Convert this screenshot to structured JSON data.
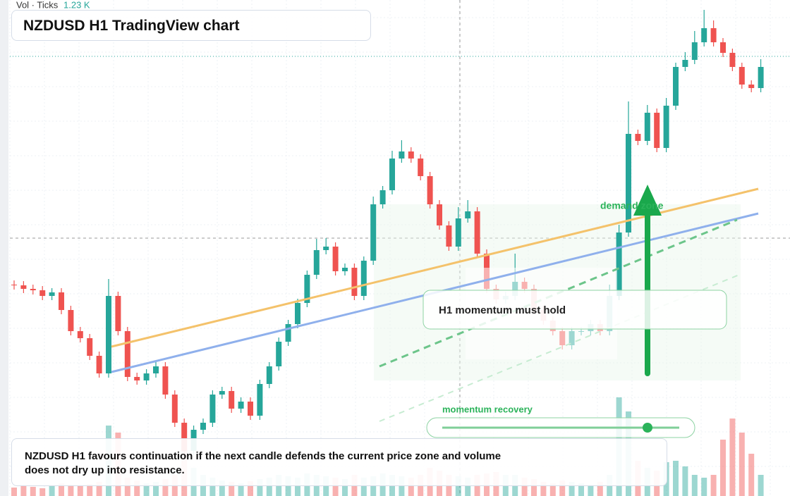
{
  "chart_data": {
    "type": "candlestick",
    "title": "NZDUSD H1 TradingView chart",
    "volume_label": "Vol · Ticks",
    "volume_value": "1.23 K",
    "zone_label": "demand zone",
    "callout": "H1 momentum must hold",
    "slider_label": "momentum recovery",
    "summary": "NZDUSD H1 favours continuation if the next candle defends the current price zone and volume does not dry up into resistance.",
    "up_color": "#26a69a",
    "down_color": "#ef5350",
    "ylim": [
      0,
      704
    ],
    "open": [
      300,
      299,
      294,
      292,
      284,
      289,
      264,
      234,
      224,
      199,
      174,
      284,
      234,
      169,
      164,
      174,
      184,
      144,
      104,
      64,
      94,
      104,
      144,
      149,
      124,
      134,
      114,
      159,
      184,
      219,
      244,
      274,
      314,
      349,
      354,
      319,
      324,
      284,
      334,
      414,
      434,
      479,
      489,
      479,
      454,
      414,
      384,
      354,
      394,
      404,
      344,
      294,
      279,
      284,
      304,
      294,
      264,
      249,
      234,
      214,
      234,
      234,
      244,
      234,
      284,
      374,
      514,
      504,
      544,
      494,
      554,
      609,
      619,
      644,
      664,
      644,
      629,
      609,
      584,
      579
    ],
    "high": [
      306,
      305,
      300,
      298,
      295,
      295,
      270,
      240,
      230,
      205,
      308,
      290,
      240,
      175,
      180,
      190,
      190,
      150,
      110,
      100,
      110,
      150,
      155,
      155,
      140,
      140,
      165,
      190,
      225,
      250,
      280,
      320,
      365,
      366,
      360,
      330,
      330,
      340,
      425,
      440,
      490,
      505,
      495,
      485,
      460,
      420,
      390,
      410,
      420,
      410,
      350,
      300,
      290,
      344,
      310,
      300,
      270,
      255,
      240,
      240,
      240,
      250,
      250,
      300,
      385,
      560,
      520,
      555,
      550,
      565,
      615,
      630,
      660,
      690,
      675,
      650,
      635,
      615,
      590,
      620
    ],
    "low": [
      293,
      288,
      286,
      278,
      278,
      258,
      228,
      218,
      193,
      168,
      168,
      228,
      163,
      158,
      158,
      168,
      138,
      98,
      58,
      58,
      88,
      98,
      138,
      118,
      118,
      108,
      108,
      153,
      178,
      213,
      238,
      268,
      308,
      343,
      313,
      313,
      278,
      278,
      328,
      408,
      428,
      473,
      473,
      448,
      408,
      378,
      348,
      348,
      388,
      338,
      288,
      273,
      273,
      278,
      288,
      258,
      243,
      228,
      208,
      208,
      228,
      228,
      228,
      228,
      278,
      368,
      498,
      498,
      488,
      488,
      548,
      603,
      613,
      638,
      638,
      623,
      603,
      578,
      573,
      573
    ],
    "close": [
      299,
      294,
      292,
      284,
      289,
      264,
      234,
      224,
      199,
      174,
      284,
      234,
      169,
      164,
      174,
      184,
      144,
      104,
      64,
      94,
      104,
      144,
      149,
      124,
      134,
      114,
      159,
      184,
      219,
      244,
      274,
      314,
      349,
      354,
      319,
      324,
      284,
      334,
      414,
      434,
      479,
      489,
      479,
      454,
      414,
      384,
      354,
      394,
      404,
      344,
      294,
      279,
      284,
      304,
      294,
      264,
      249,
      234,
      214,
      234,
      234,
      244,
      234,
      284,
      374,
      514,
      504,
      544,
      494,
      554,
      609,
      619,
      644,
      664,
      644,
      629,
      609,
      584,
      579,
      609
    ],
    "volume": [
      120,
      150,
      130,
      110,
      140,
      180,
      160,
      150,
      170,
      200,
      1000,
      900,
      260,
      220,
      180,
      200,
      240,
      300,
      800,
      400,
      300,
      260,
      220,
      200,
      180,
      210,
      240,
      260,
      300,
      280,
      260,
      320,
      300,
      280,
      260,
      240,
      300,
      260,
      280,
      320,
      300,
      280,
      260,
      300,
      400,
      360,
      300,
      280,
      260,
      300,
      320,
      340,
      300,
      300,
      260,
      240,
      200,
      180,
      220,
      200,
      180,
      160,
      200,
      300,
      1400,
      1200,
      500,
      400,
      360,
      480,
      500,
      420,
      300,
      260,
      300,
      800,
      1100,
      900,
      600,
      300
    ]
  }
}
